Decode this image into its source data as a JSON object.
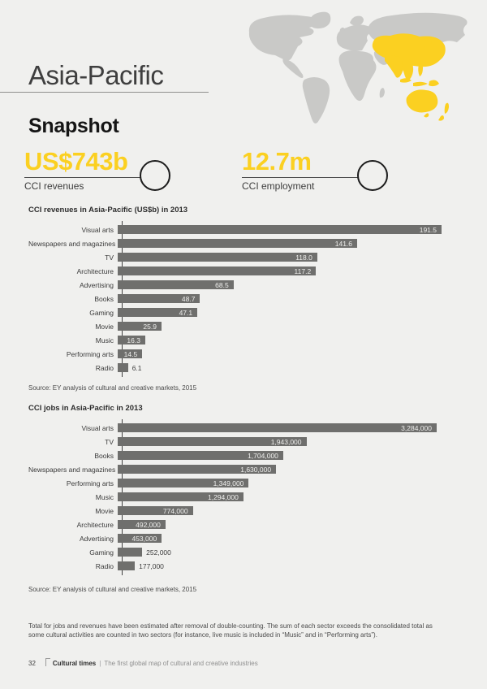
{
  "header": {
    "region_title": "Asia-Pacific",
    "snapshot_title": "Snapshot"
  },
  "stats": [
    {
      "value": "US$743b",
      "label": "CCI revenues"
    },
    {
      "value": "12.7m",
      "label": "CCI employment"
    }
  ],
  "colors": {
    "accent_yellow": "#FBD021",
    "bar_gray": "#6F6F6D",
    "map_gray": "#C9C9C7",
    "background": "#F0F0EE"
  },
  "map": {
    "highlight_region": "Asia-Pacific"
  },
  "chart_data": [
    {
      "type": "bar",
      "orientation": "horizontal",
      "title": "CCI revenues in Asia-Pacific (US$b) in 2013",
      "categories": [
        "Visual arts",
        "Newspapers and magazines",
        "TV",
        "Architecture",
        "Advertising",
        "Books",
        "Gaming",
        "Movie",
        "Music",
        "Performing arts",
        "Radio"
      ],
      "values": [
        191.5,
        141.6,
        118.0,
        117.2,
        68.5,
        48.7,
        47.1,
        25.9,
        16.3,
        14.5,
        6.1
      ],
      "value_labels": [
        "191.5",
        "141.6",
        "118.0",
        "117.2",
        "68.5",
        "48.7",
        "47.1",
        "25.9",
        "16.3",
        "14.5",
        "6.1"
      ],
      "xlim": [
        0,
        191.5
      ],
      "grid": false,
      "legend": false,
      "source": "Source: EY analysis of cultural and creative markets, 2015"
    },
    {
      "type": "bar",
      "orientation": "horizontal",
      "title": "CCI jobs in Asia-Pacific in 2013",
      "categories": [
        "Visual arts",
        "TV",
        "Books",
        "Newspapers and magazines",
        "Performing arts",
        "Music",
        "Movie",
        "Architecture",
        "Advertising",
        "Gaming",
        "Radio"
      ],
      "values": [
        3284000,
        1943000,
        1704000,
        1630000,
        1349000,
        1294000,
        774000,
        492000,
        453000,
        252000,
        177000
      ],
      "value_labels": [
        "3,284,000",
        "1,943,000",
        "1,704,000",
        "1,630,000",
        "1,349,000",
        "1,294,000",
        "774,000",
        "492,000",
        "453,000",
        "252,000",
        "177,000"
      ],
      "xlim": [
        0,
        3284000
      ],
      "grid": false,
      "legend": false,
      "source": "Source: EY analysis of cultural and creative markets, 2015"
    }
  ],
  "footnote": "Total for jobs and revenues have been estimated after removal of double-counting. The sum of each sector exceeds the consolidated total as some cultural activities are counted in two sectors (for instance, live music is included in “Music” and in “Performing arts”).",
  "footer": {
    "page_number": "32",
    "book_title": "Cultural times",
    "separator": "|",
    "book_subtitle": "The first global map of cultural and creative industries"
  }
}
